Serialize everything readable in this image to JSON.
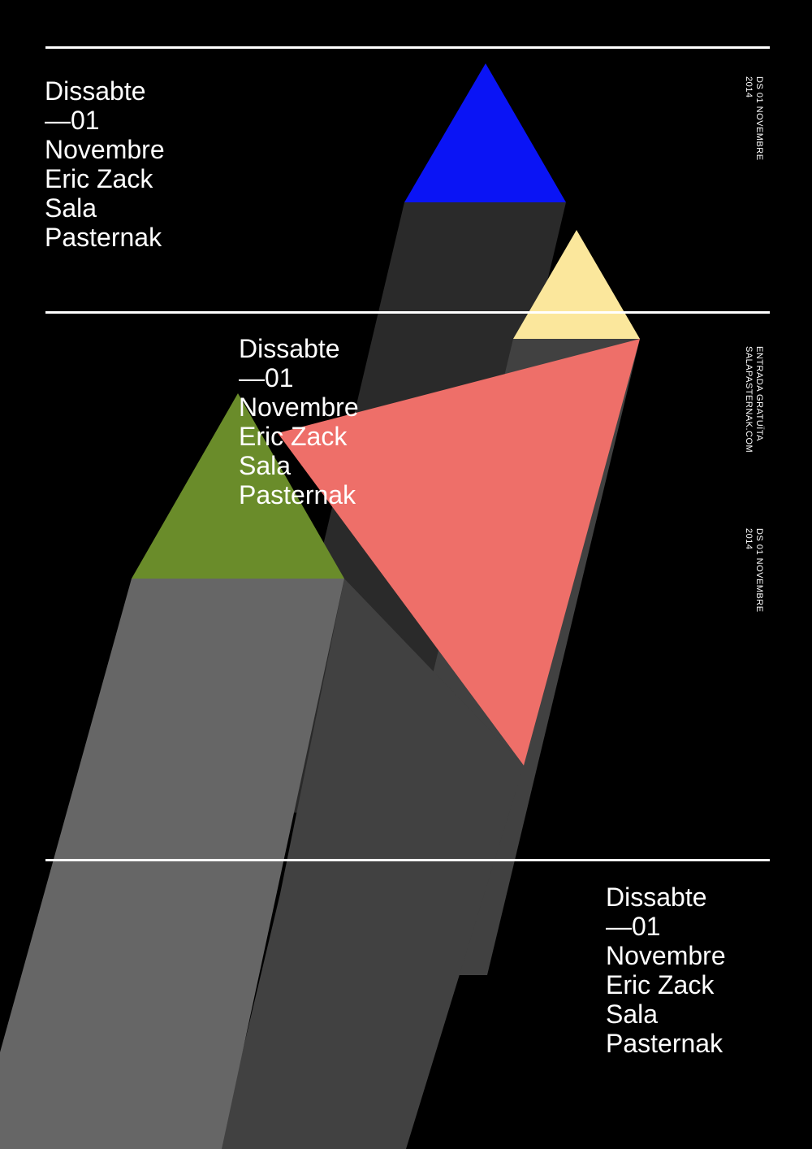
{
  "colors": {
    "background": "#000000",
    "rule": "#ffffff",
    "text": "#ffffff",
    "blue": "#0a14f5",
    "yellow": "#fbe79c",
    "green": "#6a8c2a",
    "coral": "#ee6f69",
    "gray_dark": "#2a2a2a",
    "gray_mid": "#414141",
    "gray_light": "#666666"
  },
  "blocks": [
    {
      "lines": [
        "Dissabte",
        "—01",
        "Novembre",
        "Eric Zack",
        "Sala",
        "Pasternak"
      ]
    },
    {
      "lines": [
        "Dissabte",
        "—01",
        "Novembre",
        "Eric Zack",
        "Sala",
        "Pasternak"
      ]
    },
    {
      "lines": [
        "Dissabte",
        "—01",
        "Novembre",
        "Eric Zack",
        "Sala",
        "Pasternak"
      ]
    }
  ],
  "side": {
    "date_top": {
      "line1": "DS 01 NOVEMBRE",
      "line2": "2014"
    },
    "info": {
      "line1": "ENTRADA GRATUÏTA",
      "line2": "SALAPASTERNAK.COM"
    },
    "date_bottom": {
      "line1": "DS 01 NOVEMBRE",
      "line2": "2014"
    }
  }
}
